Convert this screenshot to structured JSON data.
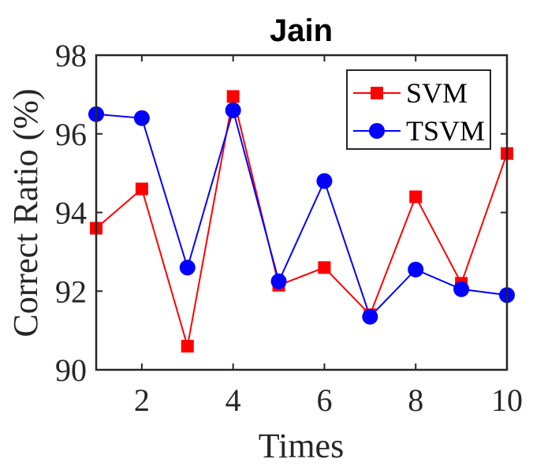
{
  "chart_data": {
    "type": "line",
    "title": "Jain",
    "xlabel": "Times",
    "ylabel": "Correct Ratio (%)",
    "x": [
      1,
      2,
      3,
      4,
      5,
      6,
      7,
      8,
      9,
      10
    ],
    "xlim": [
      1,
      10
    ],
    "ylim": [
      90,
      98
    ],
    "xticks": [
      2,
      4,
      6,
      8,
      10
    ],
    "yticks": [
      90,
      92,
      94,
      96,
      98
    ],
    "grid": false,
    "legend_position": "top-right",
    "series": [
      {
        "name": "SVM",
        "color": "#ff0000",
        "marker": "square",
        "values": [
          93.6,
          94.6,
          90.6,
          96.95,
          92.15,
          92.6,
          91.4,
          94.4,
          92.2,
          95.5
        ]
      },
      {
        "name": "TSVM",
        "color": "#0000ff",
        "marker": "circle",
        "values": [
          96.5,
          96.4,
          92.6,
          96.6,
          92.25,
          94.8,
          91.35,
          92.55,
          92.05,
          91.9
        ]
      }
    ]
  }
}
